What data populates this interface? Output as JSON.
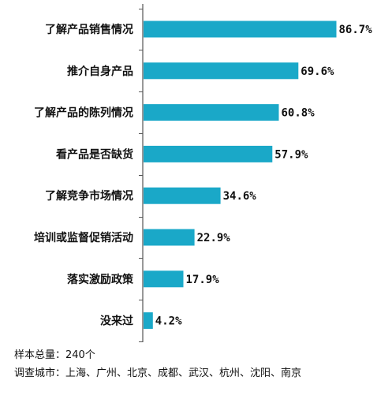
{
  "chart_data": {
    "type": "bar",
    "orientation": "horizontal",
    "categories": [
      "了解产品销售情况",
      "推介自身产品",
      "了解产品的陈列情况",
      "看产品是否缺货",
      "了解竞争市场情况",
      "培训或监督促销活动",
      "落实激励政策",
      "没来过"
    ],
    "values": [
      86.7,
      69.6,
      60.8,
      57.9,
      34.6,
      22.9,
      17.9,
      4.2
    ],
    "value_labels": [
      "86.7%",
      "69.6%",
      "60.8%",
      "57.9%",
      "34.6%",
      "22.9%",
      "17.9%",
      "4.2%"
    ],
    "xlim": [
      0,
      100
    ],
    "bar_color": "#1aa8c8",
    "grid": false
  },
  "footnotes": {
    "sample": "样本总量：240个",
    "cities": "调查城市：上海、广州、北京、成都、武汉、杭州、沈阳、南京"
  }
}
